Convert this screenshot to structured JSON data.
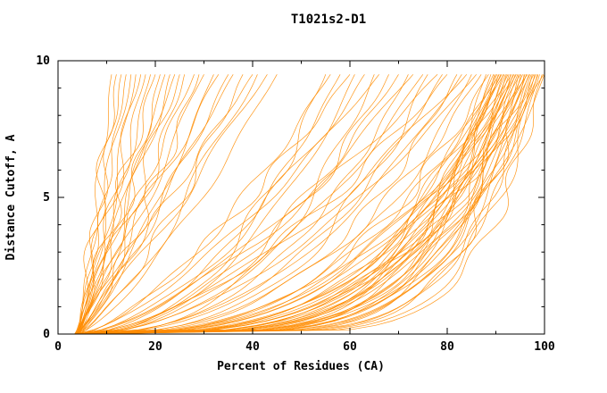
{
  "title": "T1021s2-D1",
  "chart_data": {
    "type": "line",
    "title": "T1021s2-D1",
    "xlabel": "Percent of Residues (CA)",
    "ylabel": "Distance Cutoff, A",
    "xlim": [
      0,
      100
    ],
    "ylim": [
      0,
      10
    ],
    "xticks": [
      0,
      20,
      40,
      60,
      80,
      100
    ],
    "yticks": [
      0,
      5,
      10
    ],
    "x_minor_step": 10,
    "y_minor_step": 1,
    "grid": false,
    "legend": "none",
    "line_color": "#FF8C00",
    "axis_color": "#000000",
    "background": "#FFFFFF",
    "y_curve_top": 9.5,
    "waviness": 1.3,
    "curves_note": "Each curve = one model: [final_percent_at_top_cutoff, shape_exponent, start_percent_at_zero_cutoff]; x(y) = start + (final-start)*(y/9.5)^exp",
    "curves": [
      [
        100,
        0.22,
        4.5
      ],
      [
        99.8,
        0.3,
        3.8
      ],
      [
        99.5,
        0.13,
        4
      ],
      [
        99,
        0.16,
        3.5
      ],
      [
        98.7,
        0.2,
        4.5
      ],
      [
        98.5,
        0.14,
        5
      ],
      [
        98.2,
        0.24,
        3
      ],
      [
        98,
        0.18,
        4
      ],
      [
        97.8,
        0.3,
        4.2
      ],
      [
        97.5,
        0.15,
        3.8
      ],
      [
        97.3,
        0.22,
        5
      ],
      [
        97,
        0.27,
        4.4
      ],
      [
        96.8,
        0.17,
        3.2
      ],
      [
        96.5,
        0.33,
        4.8
      ],
      [
        96.3,
        0.19,
        5.2
      ],
      [
        96,
        0.25,
        3.6
      ],
      [
        95.8,
        0.14,
        4.1
      ],
      [
        95.5,
        0.29,
        4.6
      ],
      [
        95.2,
        0.21,
        3.3
      ],
      [
        95,
        0.35,
        5
      ],
      [
        94.7,
        0.16,
        4.3
      ],
      [
        94.5,
        0.24,
        3.9
      ],
      [
        94.2,
        0.31,
        4.7
      ],
      [
        94,
        0.18,
        3.4
      ],
      [
        93.7,
        0.27,
        5.1
      ],
      [
        93.5,
        0.2,
        4
      ],
      [
        93.2,
        0.36,
        4.5
      ],
      [
        93,
        0.15,
        3.7
      ],
      [
        92.7,
        0.23,
        4.9
      ],
      [
        92.5,
        0.3,
        3.5
      ],
      [
        92.2,
        0.19,
        4.2
      ],
      [
        92,
        0.26,
        5
      ],
      [
        91.7,
        0.34,
        3.8
      ],
      [
        91.5,
        0.17,
        4.4
      ],
      [
        91.2,
        0.28,
        3.2
      ],
      [
        91,
        0.22,
        4.8
      ],
      [
        90.7,
        0.37,
        4
      ],
      [
        90.5,
        0.2,
        3.6
      ],
      [
        90.2,
        0.25,
        5.2
      ],
      [
        90,
        0.32,
        4.1
      ],
      [
        89.7,
        0.18,
        4.6
      ],
      [
        89.5,
        0.28,
        3.3
      ],
      [
        89,
        0.23,
        4.9
      ],
      [
        88.5,
        0.35,
        3.9
      ],
      [
        88,
        0.2,
        4.3
      ],
      [
        87,
        0.4,
        4
      ],
      [
        86,
        0.55,
        5
      ],
      [
        85,
        0.33,
        3.5
      ],
      [
        84,
        0.62,
        4.5
      ],
      [
        83,
        0.45,
        4
      ],
      [
        82,
        0.37,
        5
      ],
      [
        80,
        0.58,
        3.8
      ],
      [
        79,
        0.42,
        4.6
      ],
      [
        78,
        0.68,
        4.2
      ],
      [
        76,
        0.35,
        3.4
      ],
      [
        75,
        0.5,
        4.8
      ],
      [
        73,
        0.63,
        4
      ],
      [
        72,
        0.4,
        3.6
      ],
      [
        70,
        0.55,
        5
      ],
      [
        68,
        0.47,
        4.2
      ],
      [
        66,
        0.7,
        3.8
      ],
      [
        65,
        0.38,
        4.4
      ],
      [
        63,
        0.6,
        4
      ],
      [
        61,
        0.45,
        3.5
      ],
      [
        60,
        0.72,
        4.7
      ],
      [
        58,
        0.52,
        4.1
      ],
      [
        56,
        0.65,
        3.7
      ],
      [
        55,
        0.43,
        4.3
      ],
      [
        45,
        0.75,
        4
      ],
      [
        43,
        0.9,
        3.5
      ],
      [
        41,
        0.8,
        4.5
      ],
      [
        40,
        1.0,
        4
      ],
      [
        38,
        0.72,
        3.6
      ],
      [
        36,
        0.95,
        4.2
      ],
      [
        35,
        0.85,
        3.8
      ],
      [
        33,
        1.05,
        4.4
      ],
      [
        32,
        0.78,
        4
      ],
      [
        30,
        0.92,
        3.5
      ],
      [
        29,
        0.82,
        4.6
      ],
      [
        28,
        1.0,
        3.9
      ],
      [
        26,
        0.75,
        4.1
      ],
      [
        25,
        0.88,
        3.4
      ],
      [
        24,
        1.08,
        4.5
      ],
      [
        23,
        0.8,
        3.7
      ],
      [
        22,
        0.95,
        4.2
      ],
      [
        21,
        0.73,
        3.9
      ],
      [
        20,
        1.02,
        4.3
      ],
      [
        19,
        0.85,
        3.6
      ],
      [
        18,
        0.9,
        4
      ],
      [
        17,
        1.05,
        4.4
      ],
      [
        16,
        0.78,
        3.8
      ],
      [
        15,
        0.96,
        4.1
      ],
      [
        14,
        0.84,
        3.5
      ],
      [
        13,
        1.0,
        4.2
      ],
      [
        12,
        0.9,
        3.9
      ],
      [
        11,
        0.82,
        4
      ]
    ]
  }
}
